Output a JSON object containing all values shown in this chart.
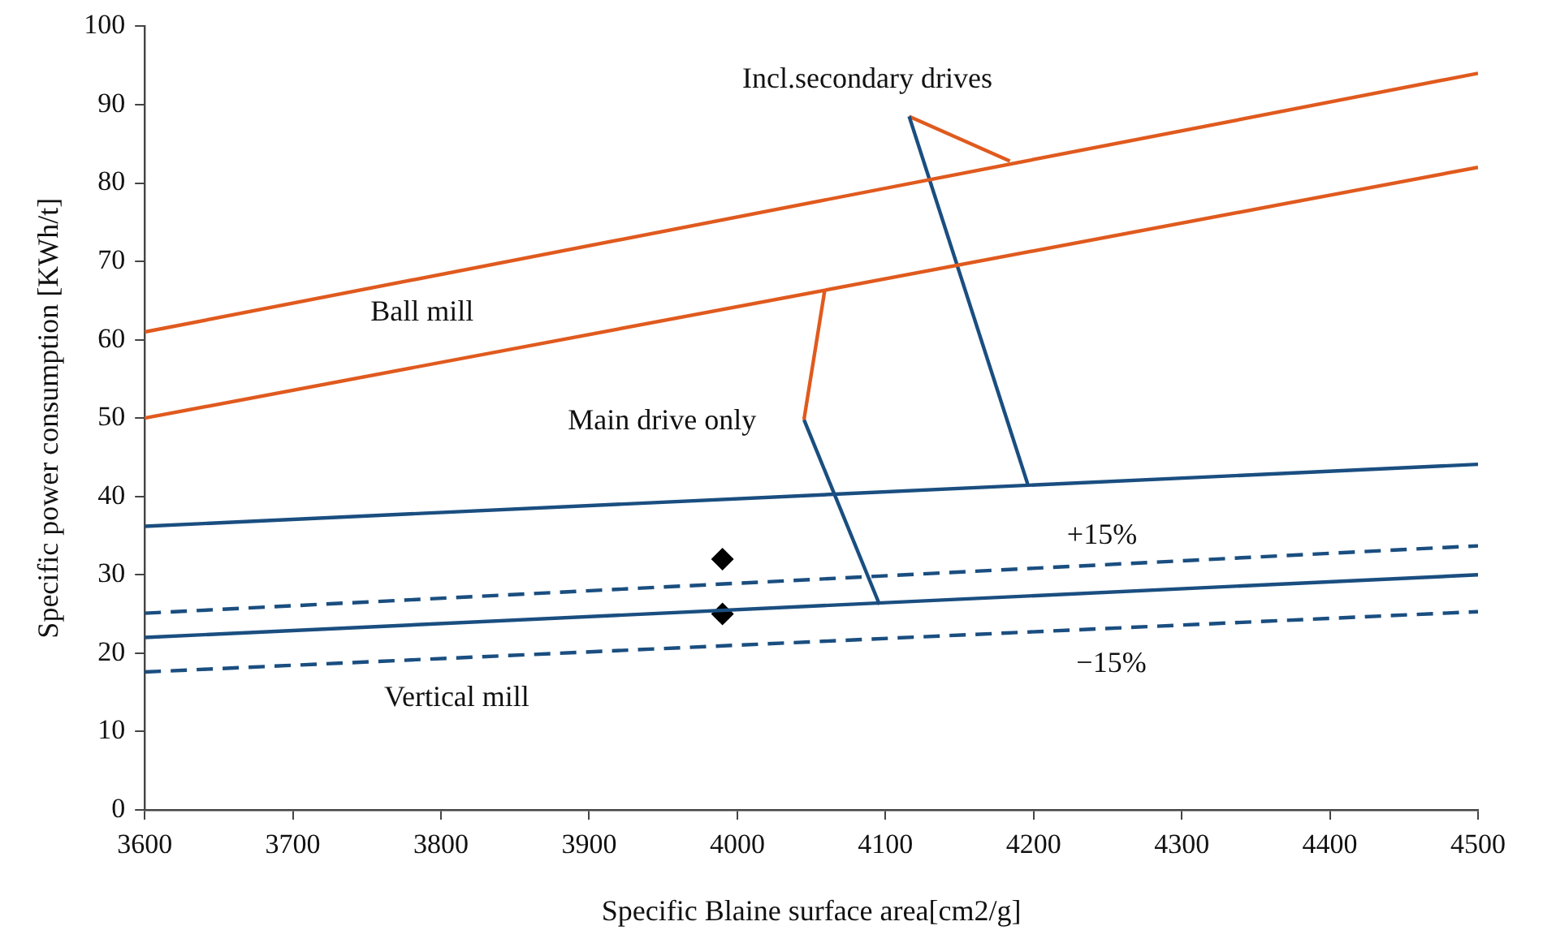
{
  "chart_data": {
    "type": "line",
    "xlabel": "Specific Blaine surface area[cm2/g]",
    "ylabel": "Specific power consumption [KWh/t]",
    "xlim": [
      3600,
      4500
    ],
    "xticks": [
      3600,
      3700,
      3800,
      3900,
      4000,
      4100,
      4200,
      4300,
      4400,
      4500
    ],
    "ylim": [
      0,
      100
    ],
    "yticks": [
      0,
      10,
      20,
      30,
      40,
      50,
      60,
      70,
      80,
      90,
      100
    ],
    "grid": false,
    "legend": false,
    "series": [
      {
        "color": "#e05a1e",
        "marker": "none",
        "x": [
          3600,
          4500
        ],
        "values": [
          61,
          94
        ]
      },
      {
        "color": "#e05a1e",
        "marker": "none",
        "x": [
          3600,
          4500
        ],
        "values": [
          50,
          82
        ]
      },
      {
        "color": "#1a4e80",
        "marker": "none",
        "x": [
          3600,
          4500
        ],
        "values": [
          36.2,
          44.1
        ]
      },
      {
        "color": "#1a4e80",
        "marker": "none",
        "x": [
          3600,
          4500
        ],
        "values": [
          22,
          30
        ]
      },
      {
        "color": "#1a4e80",
        "marker": "none",
        "line_style": "dashed",
        "x": [
          3600,
          4500
        ],
        "values": [
          25.1,
          33.7
        ]
      },
      {
        "color": "#1a4e80",
        "marker": "none",
        "line_style": "dashed",
        "x": [
          3600,
          4500
        ],
        "values": [
          17.6,
          25.3
        ]
      },
      {
        "color": "#e05a1e",
        "marker": "none",
        "x": [
          4045,
          4059
        ],
        "values": [
          49.8,
          66.3
        ]
      },
      {
        "color": "#1a4e80",
        "marker": "none",
        "x": [
          4045,
          4096
        ],
        "values": [
          49.8,
          26.2
        ]
      },
      {
        "color": "#1a4e80",
        "marker": "none",
        "x": [
          4116,
          4196
        ],
        "values": [
          88.5,
          41.6
        ]
      },
      {
        "color": "#e05a1e",
        "marker": "none",
        "x": [
          4116,
          4184
        ],
        "values": [
          88.5,
          82.8
        ]
      },
      {
        "type": "scatter",
        "color": "#000000",
        "marker": "diamond",
        "x": [
          3990,
          3990
        ],
        "values": [
          32,
          25
        ]
      }
    ],
    "annotations": [
      "Incl.secondary drives",
      "Ball mill",
      "Main drive only",
      "+15%",
      "−15%",
      "Vertical mill"
    ]
  }
}
